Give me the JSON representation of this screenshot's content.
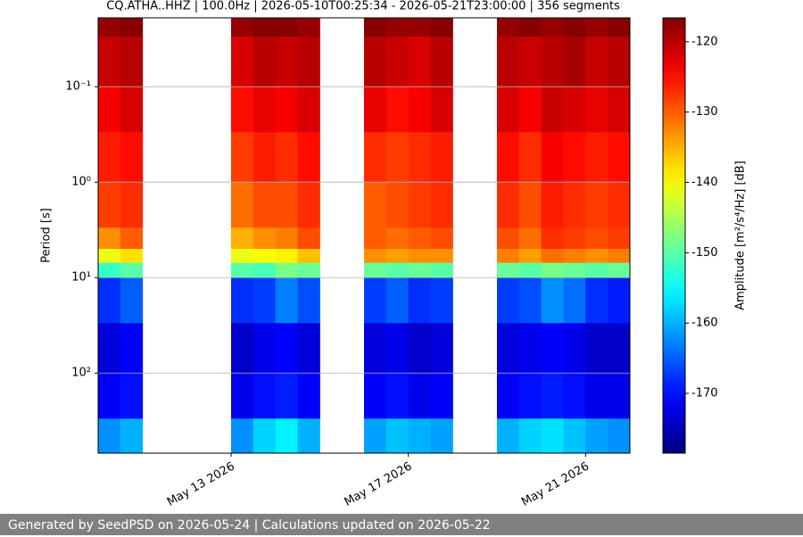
{
  "chart_data": {
    "type": "heatmap",
    "title": "CQ.ATHA..HHZ | 100.0Hz | 2026-05-10T00:25:34 - 2026-05-21T23:00:00 | 356 segments",
    "ylabel": "Period [s]",
    "colorbar_label": "Amplitude [m²/s⁴/Hz] [dB]",
    "colormap": "jet",
    "y_log": true,
    "y_inverted": true,
    "grid": true,
    "xlim": [
      "2026-05-10T00:00",
      "2026-05-22T00:00"
    ],
    "xticks": [
      {
        "value": "2026-05-13T00:00",
        "label": "May 13 2026"
      },
      {
        "value": "2026-05-17T00:00",
        "label": "May 17 2026"
      },
      {
        "value": "2026-05-21T00:00",
        "label": "May 21 2026"
      }
    ],
    "ylim": [
      0.019,
      690
    ],
    "yticks": [
      {
        "value": 0.1,
        "label": "10⁻¹"
      },
      {
        "value": 1,
        "label": "10⁰"
      },
      {
        "value": 10,
        "label": "10¹"
      },
      {
        "value": 100,
        "label": "10²"
      }
    ],
    "clim": [
      -178.5,
      -116.6
    ],
    "cticks": [
      -120,
      -130,
      -140,
      -150,
      -160,
      -170
    ],
    "x": [
      "2026-05-10T00:00",
      "2026-05-10T12:00",
      "2026-05-11T00:00",
      "2026-05-11T12:00",
      "2026-05-12T00:00",
      "2026-05-12T12:00",
      "2026-05-13T00:00",
      "2026-05-13T12:00",
      "2026-05-14T00:00",
      "2026-05-14T12:00",
      "2026-05-15T00:00",
      "2026-05-15T12:00",
      "2026-05-16T00:00",
      "2026-05-16T12:00",
      "2026-05-17T00:00",
      "2026-05-17T12:00",
      "2026-05-18T00:00",
      "2026-05-18T12:00",
      "2026-05-19T00:00",
      "2026-05-19T12:00",
      "2026-05-20T00:00",
      "2026-05-20T12:00",
      "2026-05-21T00:00",
      "2026-05-21T12:00",
      "2026-05-22T00:00"
    ],
    "y": [
      0.019,
      0.03,
      0.1,
      0.3,
      1,
      3,
      5,
      7,
      10,
      30,
      100,
      300,
      690
    ],
    "values": [
      [
        -118,
        -117,
        null,
        null,
        null,
        null,
        -118,
        -117,
        -117,
        -118,
        null,
        null,
        -117,
        -118,
        -118,
        -117,
        null,
        null,
        -118,
        -117,
        -118,
        -117,
        -118,
        -117
      ],
      [
        -121,
        -120,
        null,
        null,
        null,
        null,
        -122,
        -120,
        -121,
        -120,
        null,
        null,
        -120,
        -121,
        -122,
        -120,
        null,
        null,
        -120,
        -121,
        -120,
        -119,
        -121,
        -120
      ],
      [
        -124,
        -122,
        null,
        null,
        null,
        null,
        -125,
        -123,
        -124,
        -122,
        null,
        null,
        -123,
        -125,
        -124,
        -122,
        null,
        null,
        -122,
        -124,
        -121,
        -122,
        -123,
        -122
      ],
      [
        -126,
        -125,
        null,
        null,
        null,
        null,
        -128,
        -126,
        -127,
        -125,
        null,
        null,
        -127,
        -128,
        -127,
        -126,
        null,
        null,
        -125,
        -127,
        -124,
        -125,
        -126,
        -125
      ],
      [
        -128,
        -127,
        null,
        null,
        null,
        null,
        -131,
        -129,
        -129,
        -127,
        null,
        null,
        -130,
        -129,
        -128,
        -127,
        null,
        null,
        -127,
        -129,
        -126,
        -127,
        -128,
        -127
      ],
      [
        -133,
        -130,
        null,
        null,
        null,
        null,
        -135,
        -133,
        -132,
        -129,
        null,
        null,
        -130,
        -131,
        -130,
        -129,
        null,
        null,
        -129,
        -131,
        -127,
        -128,
        -129,
        -128
      ],
      [
        -141,
        -138,
        null,
        null,
        null,
        null,
        -141,
        -140,
        -139,
        -136,
        null,
        null,
        -133,
        -134,
        -133,
        -133,
        null,
        null,
        -132,
        -134,
        -131,
        -132,
        -133,
        -132
      ],
      [
        -152,
        -150,
        null,
        null,
        null,
        null,
        -150,
        -151,
        -148,
        -149,
        null,
        null,
        -149,
        -150,
        -149,
        -150,
        null,
        null,
        -149,
        -150,
        -148,
        -149,
        -150,
        -149
      ],
      [
        -168,
        -165,
        null,
        null,
        null,
        null,
        -168,
        -167,
        -163,
        -166,
        null,
        null,
        -167,
        -165,
        -168,
        -167,
        null,
        null,
        -167,
        -166,
        -162,
        -164,
        -168,
        -169
      ],
      [
        -173,
        -171,
        null,
        null,
        null,
        null,
        -174,
        -172,
        -171,
        -173,
        null,
        null,
        -173,
        -172,
        -174,
        -173,
        null,
        null,
        -173,
        -172,
        -171,
        -172,
        -174,
        -174
      ],
      [
        -171,
        -170,
        null,
        null,
        null,
        null,
        -172,
        -170,
        -169,
        -171,
        null,
        null,
        -171,
        -170,
        -172,
        -171,
        null,
        null,
        -171,
        -170,
        -169,
        -170,
        -172,
        -172
      ],
      [
        -162,
        -160,
        null,
        null,
        null,
        null,
        -162,
        -158,
        -156,
        -160,
        null,
        null,
        -161,
        -159,
        -160,
        -161,
        null,
        null,
        -160,
        -158,
        -157,
        -159,
        -161,
        -162
      ]
    ]
  },
  "footer": "Generated by SeedPSD on 2026-05-24 | Calculations updated on 2026-05-22"
}
